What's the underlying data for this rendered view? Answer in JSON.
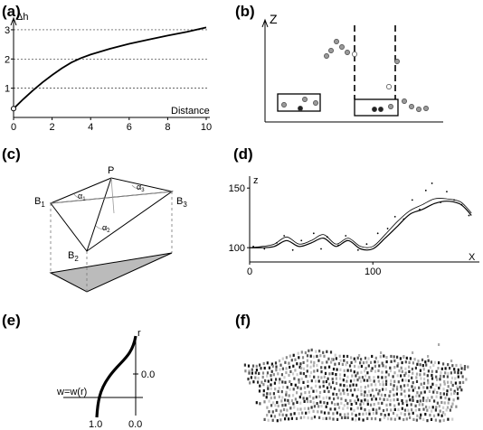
{
  "panels": {
    "a": {
      "label": "(a)",
      "ylabel": "Δh",
      "xlabel": "Distance",
      "xticks": [
        "0",
        "2",
        "4",
        "6",
        "8",
        "10"
      ],
      "yticks": [
        "1",
        "2",
        "3"
      ]
    },
    "b": {
      "label": "(b)",
      "axis_label": "Z"
    },
    "c": {
      "label": "(c)",
      "points": {
        "p": "P",
        "b1": "B",
        "b2": "B",
        "b3": "B",
        "s1": "1",
        "s2": "2",
        "s3": "3"
      },
      "angles": {
        "a1": "α",
        "a2": "α",
        "a3": "α",
        "s1": "1",
        "s2": "2",
        "s3": "3"
      }
    },
    "d": {
      "label": "(d)",
      "ylabel": "z",
      "xlabel": "X",
      "xticks": [
        "0",
        "100"
      ],
      "yticks": [
        "100",
        "150"
      ]
    },
    "e": {
      "label": "(e)",
      "rlabel": "r",
      "equation": "w=w(r)",
      "r_tick": "0.0",
      "bottom_left": "1.0",
      "bottom_right": "0.0"
    },
    "f": {
      "label": "(f)"
    }
  },
  "chart_data": [
    {
      "type": "line",
      "panel": "a",
      "x": [
        0,
        0.5,
        1,
        1.5,
        2,
        2.5,
        3,
        3.5,
        4,
        5,
        6,
        7,
        8,
        9,
        10
      ],
      "series": [
        {
          "values": [
            0.3,
            0.62,
            0.92,
            1.2,
            1.45,
            1.68,
            1.88,
            2.03,
            2.15,
            2.35,
            2.52,
            2.66,
            2.8,
            2.93,
            3.08
          ]
        }
      ],
      "xlabel": "Distance",
      "ylabel": "Δh",
      "xlim": [
        0,
        10
      ],
      "ylim": [
        0,
        3.4
      ],
      "grid": "dotted horizontal at 1, 2, 3",
      "start_marker": {
        "x": 0,
        "y": 0.3
      }
    },
    {
      "type": "line",
      "panel": "d",
      "xlabel": "X",
      "ylabel": "z",
      "xlim": [
        0,
        185
      ],
      "ylim": [
        88,
        160
      ],
      "series": [
        {
          "x": [
            0,
            10,
            20,
            30,
            40,
            50,
            60,
            70,
            80,
            90,
            100,
            110,
            120,
            130,
            140,
            150,
            160,
            170,
            175,
            180
          ],
          "values": [
            100,
            100,
            101,
            106,
            101,
            104,
            108,
            101,
            106,
            99,
            99,
            108,
            118,
            128,
            132,
            137,
            139,
            137,
            133,
            127
          ]
        },
        {
          "x": [
            0,
            10,
            20,
            30,
            40,
            50,
            60,
            70,
            80,
            90,
            100,
            110,
            120,
            130,
            140,
            150,
            160,
            170,
            175,
            180
          ],
          "values": [
            100,
            101,
            103,
            109,
            103,
            106,
            111,
            103,
            108,
            101,
            101,
            111,
            122,
            131,
            136,
            141,
            141,
            139,
            135,
            129
          ]
        },
        {
          "type": "scatter",
          "x": [
            3,
            12,
            22,
            28,
            35,
            42,
            52,
            58,
            63,
            72,
            78,
            88,
            95,
            104,
            112,
            118,
            125,
            132,
            138,
            143,
            148,
            155,
            160,
            166,
            172,
            178
          ],
          "values": [
            101,
            99,
            104,
            110,
            98,
            106,
            112,
            99,
            109,
            102,
            110,
            98,
            103,
            112,
            116,
            126,
            124,
            140,
            132,
            148,
            154,
            138,
            147,
            140,
            136,
            127
          ]
        }
      ]
    }
  ]
}
